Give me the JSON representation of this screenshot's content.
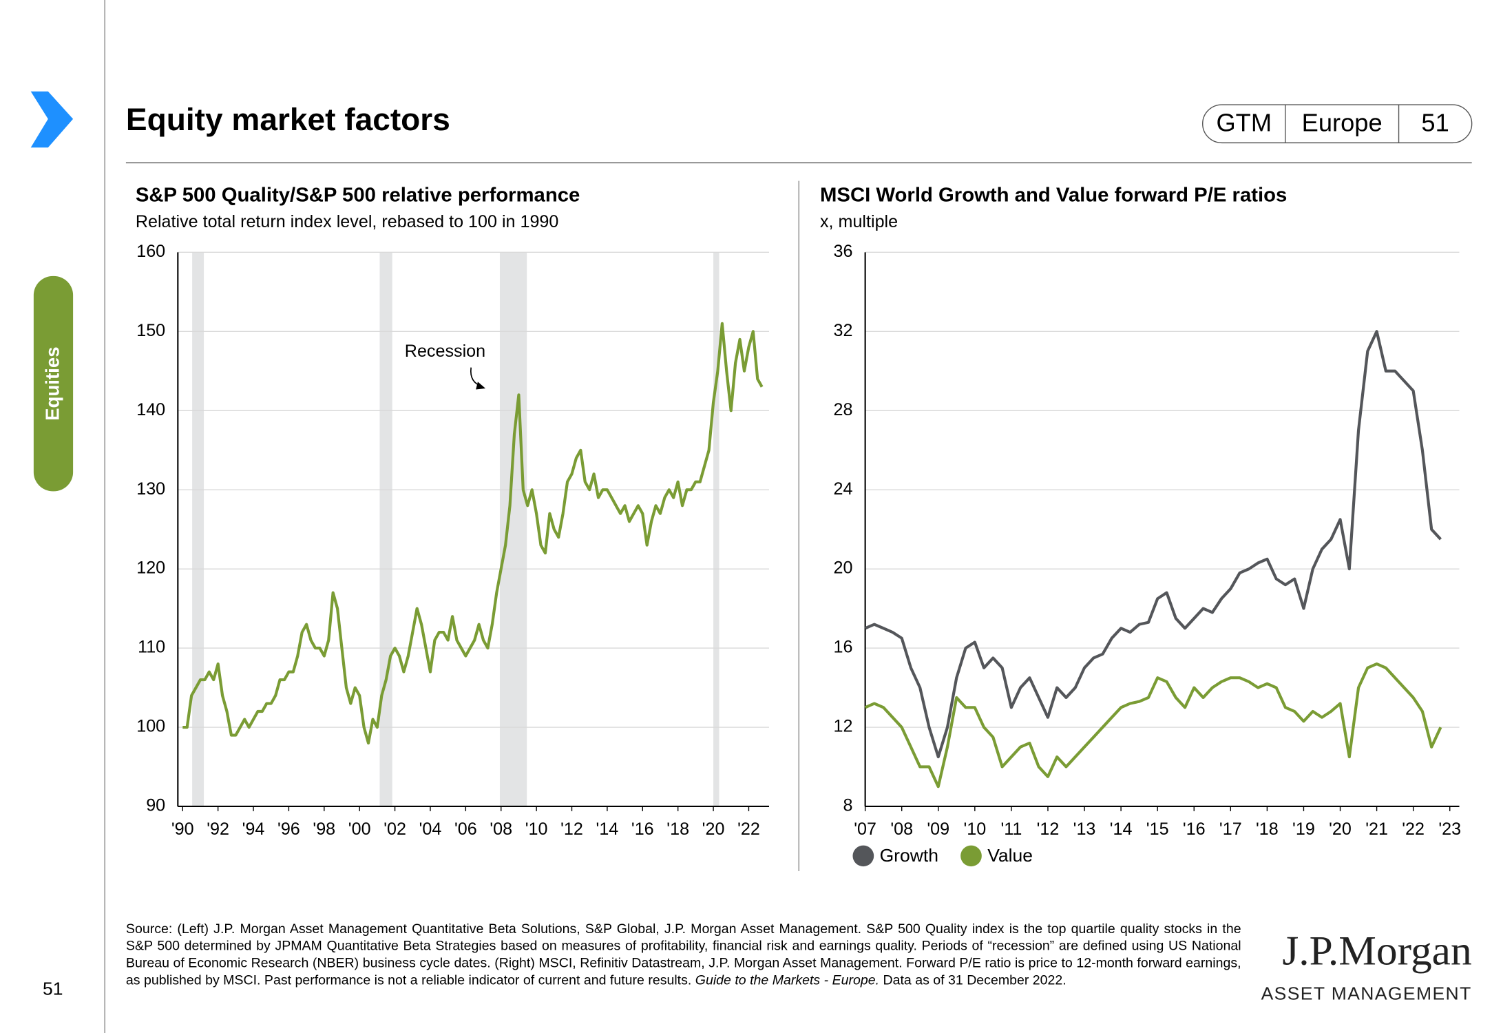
{
  "header": {
    "title": "Equity market factors",
    "tabs": [
      "GTM",
      "Europe",
      "51"
    ],
    "section": "Equities",
    "page_number": "51"
  },
  "chart_data": [
    {
      "type": "line",
      "title": "S&P 500 Quality/S&P 500 relative performance",
      "subtitle": "Relative total return index level, rebased to 100 in 1990",
      "annotation": "Recession",
      "shaded_periods": [
        [
          1990.54,
          1991.2
        ],
        [
          2001.14,
          2001.85
        ],
        [
          2007.93,
          2009.46
        ],
        [
          2020.0,
          2020.33
        ]
      ],
      "x": [
        1990,
        1990.25,
        1990.5,
        1990.75,
        1991,
        1991.25,
        1991.5,
        1991.75,
        1992,
        1992.25,
        1992.5,
        1992.75,
        1993,
        1993.25,
        1993.5,
        1993.75,
        1994,
        1994.25,
        1994.5,
        1994.75,
        1995,
        1995.25,
        1995.5,
        1995.75,
        1996,
        1996.25,
        1996.5,
        1996.75,
        1997,
        1997.25,
        1997.5,
        1997.75,
        1998,
        1998.25,
        1998.5,
        1998.75,
        1999,
        1999.25,
        1999.5,
        1999.75,
        2000,
        2000.25,
        2000.5,
        2000.75,
        2001,
        2001.25,
        2001.5,
        2001.75,
        2002,
        2002.25,
        2002.5,
        2002.75,
        2003,
        2003.25,
        2003.5,
        2003.75,
        2004,
        2004.25,
        2004.5,
        2004.75,
        2005,
        2005.25,
        2005.5,
        2005.75,
        2006,
        2006.25,
        2006.5,
        2006.75,
        2007,
        2007.25,
        2007.5,
        2007.75,
        2008,
        2008.25,
        2008.5,
        2008.75,
        2009,
        2009.25,
        2009.5,
        2009.75,
        2010,
        2010.25,
        2010.5,
        2010.75,
        2011,
        2011.25,
        2011.5,
        2011.75,
        2012,
        2012.25,
        2012.5,
        2012.75,
        2013,
        2013.25,
        2013.5,
        2013.75,
        2014,
        2014.25,
        2014.5,
        2014.75,
        2015,
        2015.25,
        2015.5,
        2015.75,
        2016,
        2016.25,
        2016.5,
        2016.75,
        2017,
        2017.25,
        2017.5,
        2017.75,
        2018,
        2018.25,
        2018.5,
        2018.75,
        2019,
        2019.25,
        2019.5,
        2019.75,
        2020,
        2020.25,
        2020.5,
        2020.75,
        2021,
        2021.25,
        2021.5,
        2021.75,
        2022,
        2022.25,
        2022.5,
        2022.75
      ],
      "series": [
        {
          "color": "#7a9c34",
          "values": [
            100,
            100,
            104,
            105,
            106,
            106,
            107,
            106,
            108,
            104,
            102,
            99,
            99,
            100,
            101,
            100,
            101,
            102,
            102,
            103,
            103,
            104,
            106,
            106,
            107,
            107,
            109,
            112,
            113,
            111,
            110,
            110,
            109,
            111,
            117,
            115,
            110,
            105,
            103,
            105,
            104,
            100,
            98,
            101,
            100,
            104,
            106,
            109,
            110,
            109,
            107,
            109,
            112,
            115,
            113,
            110,
            107,
            111,
            112,
            112,
            111,
            114,
            111,
            110,
            109,
            110,
            111,
            113,
            111,
            110,
            113,
            117,
            120,
            123,
            128,
            137,
            142,
            130,
            128,
            130,
            127,
            123,
            122,
            127,
            125,
            124,
            127,
            131,
            132,
            134,
            135,
            131,
            130,
            132,
            129,
            130,
            130,
            129,
            128,
            127,
            128,
            126,
            127,
            128,
            127,
            123,
            126,
            128,
            127,
            129,
            130,
            129,
            131,
            128,
            130,
            130,
            131,
            131,
            133,
            135,
            141,
            145,
            151,
            145,
            140,
            146,
            149,
            145,
            148,
            150,
            144,
            143
          ]
        }
      ],
      "xlim": [
        1989.73,
        2023.15
      ],
      "ylim": [
        90,
        160
      ],
      "yticks": [
        90,
        100,
        110,
        120,
        130,
        140,
        150,
        160
      ],
      "xticks": [
        {
          "value": 1990,
          "label": "'90"
        },
        {
          "value": 1992,
          "label": "'92"
        },
        {
          "value": 1994,
          "label": "'94"
        },
        {
          "value": 1996,
          "label": "'96"
        },
        {
          "value": 1998,
          "label": "'98"
        },
        {
          "value": 2000,
          "label": "'00"
        },
        {
          "value": 2002,
          "label": "'02"
        },
        {
          "value": 2004,
          "label": "'04"
        },
        {
          "value": 2006,
          "label": "'06"
        },
        {
          "value": 2008,
          "label": "'08"
        },
        {
          "value": 2010,
          "label": "'10"
        },
        {
          "value": 2012,
          "label": "'12"
        },
        {
          "value": 2014,
          "label": "'14"
        },
        {
          "value": 2016,
          "label": "'16"
        },
        {
          "value": 2018,
          "label": "'18"
        },
        {
          "value": 2020,
          "label": "'20"
        },
        {
          "value": 2022,
          "label": "'22"
        }
      ],
      "grid": true
    },
    {
      "type": "line",
      "title": "MSCI World Growth and Value forward P/E ratios",
      "subtitle": "x, multiple",
      "x": [
        2007,
        2007.25,
        2007.5,
        2007.75,
        2008,
        2008.25,
        2008.5,
        2008.75,
        2009,
        2009.25,
        2009.5,
        2009.75,
        2010,
        2010.25,
        2010.5,
        2010.75,
        2011,
        2011.25,
        2011.5,
        2011.75,
        2012,
        2012.25,
        2012.5,
        2012.75,
        2013,
        2013.25,
        2013.5,
        2013.75,
        2014,
        2014.25,
        2014.5,
        2014.75,
        2015,
        2015.25,
        2015.5,
        2015.75,
        2016,
        2016.25,
        2016.5,
        2016.75,
        2017,
        2017.25,
        2017.5,
        2017.75,
        2018,
        2018.25,
        2018.5,
        2018.75,
        2019,
        2019.25,
        2019.5,
        2019.75,
        2020,
        2020.25,
        2020.5,
        2020.75,
        2021,
        2021.25,
        2021.5,
        2021.75,
        2022,
        2022.25,
        2022.5,
        2022.75
      ],
      "series": [
        {
          "name": "Growth",
          "color": "#54565a",
          "values": [
            17,
            17.2,
            17,
            16.8,
            16.5,
            15,
            14,
            12,
            10.5,
            12,
            14.5,
            16,
            16.3,
            15,
            15.5,
            15,
            13,
            14,
            14.5,
            13.5,
            12.5,
            14,
            13.5,
            14,
            15,
            15.5,
            15.7,
            16.5,
            17,
            16.8,
            17.2,
            17.3,
            18.5,
            18.8,
            17.5,
            17,
            17.5,
            18,
            17.8,
            18.5,
            19,
            19.8,
            20,
            20.3,
            20.5,
            19.5,
            19.2,
            19.5,
            18,
            20,
            21,
            21.5,
            22.5,
            20,
            27,
            31,
            32,
            30,
            30,
            29.5,
            29,
            26,
            22,
            21.5
          ]
        },
        {
          "name": "Value",
          "color": "#7a9c34",
          "values": [
            13,
            13.2,
            13,
            12.5,
            12,
            11,
            10,
            10,
            9,
            11,
            13.5,
            13,
            13,
            12,
            11.5,
            10,
            10.5,
            11,
            11.2,
            10,
            9.5,
            10.5,
            10,
            10.5,
            11,
            11.5,
            12,
            12.5,
            13,
            13.2,
            13.3,
            13.5,
            14.5,
            14.3,
            13.5,
            13,
            14,
            13.5,
            14,
            14.3,
            14.5,
            14.5,
            14.3,
            14,
            14.2,
            14,
            13,
            12.8,
            12.3,
            12.8,
            12.5,
            12.8,
            13.2,
            10.5,
            14,
            15,
            15.2,
            15,
            14.5,
            14,
            13.5,
            12.8,
            11,
            12
          ]
        }
      ],
      "xlim": [
        2007,
        2023.26
      ],
      "ylim": [
        8,
        36
      ],
      "yticks": [
        8,
        12,
        16,
        20,
        24,
        28,
        32,
        36
      ],
      "xticks": [
        {
          "value": 2007,
          "label": "'07"
        },
        {
          "value": 2008,
          "label": "'08"
        },
        {
          "value": 2009,
          "label": "'09"
        },
        {
          "value": 2010,
          "label": "'10"
        },
        {
          "value": 2011,
          "label": "'11"
        },
        {
          "value": 2012,
          "label": "'12"
        },
        {
          "value": 2013,
          "label": "'13"
        },
        {
          "value": 2014,
          "label": "'14"
        },
        {
          "value": 2015,
          "label": "'15"
        },
        {
          "value": 2016,
          "label": "'16"
        },
        {
          "value": 2017,
          "label": "'17"
        },
        {
          "value": 2018,
          "label": "'18"
        },
        {
          "value": 2019,
          "label": "'19"
        },
        {
          "value": 2020,
          "label": "'20"
        },
        {
          "value": 2021,
          "label": "'21"
        },
        {
          "value": 2022,
          "label": "'22"
        },
        {
          "value": 2023,
          "label": "'23"
        }
      ],
      "grid": true,
      "legend": "bottom-left"
    }
  ],
  "footer": {
    "source": [
      "Source: (Left) J.P. Morgan Asset Management Quantitative Beta Solutions, S&P Global, J.P. Morgan Asset Management. S&P 500 Quality index is the top quartile quality stocks in the S&P 500 determined by JPMAM Quantitative Beta Strategies based on measures of profitability, financial risk and earnings quality. Periods of “recession” are defined using US National Bureau of Economic Research (NBER) business cycle dates. (Right) MSCI, Refinitiv Datastream, J.P. Morgan Asset Management. Forward P/E ratio is price to 12-month forward earnings, as published by MSCI. Past performance is not a reliable indicator of current and future results. ",
      "Guide to the Markets - Europe.",
      " Data as of 31 December 2022."
    ],
    "logo": "J.P.Morgan",
    "logo_sub": "ASSET MANAGEMENT"
  }
}
